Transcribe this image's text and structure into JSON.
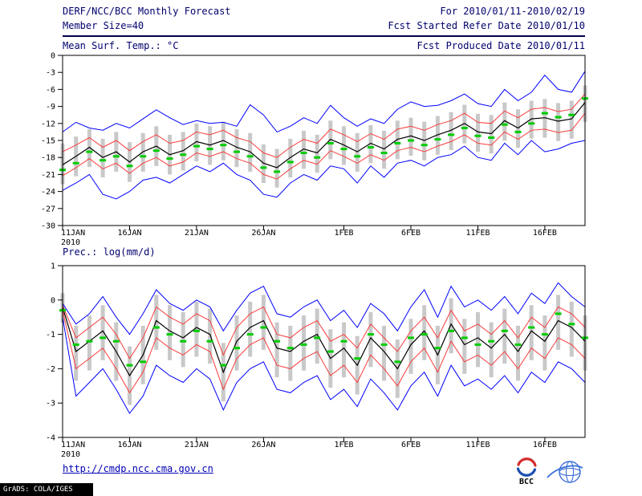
{
  "header": {
    "title": "DERF/NCC/BCC Monthly Forecast",
    "for_range": "For 2010/01/11-2010/02/19",
    "member_size": "Member Size=40",
    "fcst_refer": "Fcst Started Refer Date 2010/01/10",
    "fcst_produced": "Fcst Produced Date 2010/01/11"
  },
  "footer": {
    "url": "http://cmdp.ncc.cma.gov.cn",
    "bcc_label": "BCC",
    "grads_credit": "GrADS: COLA/IGES"
  },
  "colors": {
    "header_text": "#00006e",
    "blue_line": "#0000ff",
    "red_line": "#fa3c3c",
    "mean_line": "#000000",
    "obs_dash": "#00cc00",
    "spread_bar": "#c9c9c9",
    "link": "#0000b4"
  },
  "chart_data": [
    {
      "type": "line",
      "name": "temperature",
      "title": "Mean Surf. Temp.: °C",
      "n_points": 40,
      "start_date": "11JAN2010",
      "end_date": "19FEB2010",
      "ylim": [
        -30,
        0
      ],
      "y_ticks": [
        0,
        -3,
        -6,
        -9,
        -12,
        -15,
        -18,
        -21,
        -24,
        -27,
        -30
      ],
      "x_ticks": [
        {
          "index": 0,
          "label": "11JAN",
          "sublabel": "2010"
        },
        {
          "index": 5,
          "label": "16JAN"
        },
        {
          "index": 10,
          "label": "21JAN"
        },
        {
          "index": 15,
          "label": "26JAN"
        },
        {
          "index": 21,
          "label": "1FEB"
        },
        {
          "index": 26,
          "label": "6FEB"
        },
        {
          "index": 31,
          "label": "11FEB"
        },
        {
          "index": 36,
          "label": "16FEB"
        }
      ],
      "series": [
        {
          "name": "upper-blue",
          "color": "#0000ff",
          "width": 1,
          "values": [
            -13.5,
            -11.8,
            -12.8,
            -13.2,
            -12.0,
            -12.8,
            -11.2,
            -9.6,
            -11.0,
            -12.2,
            -11.5,
            -12.0,
            -11.8,
            -12.5,
            -8.7,
            -10.5,
            -13.5,
            -12.5,
            -11.0,
            -12.0,
            -8.8,
            -11.0,
            -12.5,
            -11.2,
            -12.0,
            -9.5,
            -8.2,
            -9.0,
            -8.8,
            -8.0,
            -6.8,
            -8.5,
            -9.0,
            -6.0,
            -8.0,
            -6.5,
            -3.5,
            -6.0,
            -6.5,
            -2.8
          ]
        },
        {
          "name": "upper-red",
          "color": "#fa3c3c",
          "width": 1,
          "values": [
            -17.0,
            -15.8,
            -14.5,
            -16.2,
            -15.0,
            -16.8,
            -15.2,
            -14.0,
            -15.5,
            -15.0,
            -13.5,
            -14.0,
            -13.2,
            -14.5,
            -15.2,
            -17.2,
            -18.0,
            -16.2,
            -14.8,
            -15.5,
            -13.0,
            -14.0,
            -15.2,
            -13.8,
            -14.8,
            -13.0,
            -12.5,
            -13.2,
            -12.2,
            -11.5,
            -10.2,
            -11.8,
            -12.0,
            -9.8,
            -11.0,
            -9.5,
            -9.2,
            -9.9,
            -9.5,
            -6.8
          ]
        },
        {
          "name": "mean-black",
          "color": "#000000",
          "width": 1.2,
          "values": [
            -19.3,
            -17.8,
            -16.2,
            -18.0,
            -17.0,
            -18.8,
            -17.0,
            -16.0,
            -17.5,
            -16.8,
            -15.2,
            -15.8,
            -15.0,
            -16.2,
            -17.0,
            -19.0,
            -19.8,
            -18.0,
            -16.5,
            -17.2,
            -14.8,
            -15.8,
            -17.0,
            -15.5,
            -16.5,
            -14.8,
            -14.2,
            -15.0,
            -14.0,
            -13.2,
            -12.0,
            -13.5,
            -13.8,
            -11.5,
            -12.8,
            -11.2,
            -11.0,
            -11.6,
            -11.2,
            -8.3
          ]
        },
        {
          "name": "lower-red",
          "color": "#fa3c3c",
          "width": 1,
          "values": [
            -21.2,
            -19.8,
            -18.2,
            -20.0,
            -19.0,
            -20.8,
            -19.0,
            -18.0,
            -19.5,
            -18.8,
            -17.2,
            -17.8,
            -17.0,
            -18.2,
            -19.0,
            -21.0,
            -21.8,
            -20.0,
            -18.5,
            -19.2,
            -16.8,
            -17.8,
            -19.0,
            -17.5,
            -18.5,
            -16.8,
            -16.2,
            -17.0,
            -16.0,
            -15.2,
            -14.0,
            -15.5,
            -15.8,
            -13.5,
            -14.8,
            -13.2,
            -13.0,
            -13.6,
            -13.2,
            -10.2
          ]
        },
        {
          "name": "lower-blue",
          "color": "#0000ff",
          "width": 1,
          "values": [
            -23.8,
            -22.5,
            -21.0,
            -24.5,
            -25.3,
            -24.0,
            -22.0,
            -21.5,
            -22.5,
            -21.0,
            -19.5,
            -20.5,
            -19.0,
            -21.0,
            -22.0,
            -24.5,
            -25.0,
            -22.5,
            -21.0,
            -22.0,
            -19.5,
            -20.0,
            -22.5,
            -19.5,
            -21.5,
            -19.0,
            -18.5,
            -19.5,
            -18.0,
            -17.5,
            -16.0,
            -18.0,
            -18.5,
            -15.5,
            -17.5,
            -15.0,
            -17.0,
            -16.5,
            -15.5,
            -15.0
          ]
        }
      ],
      "dashes": {
        "name": "green-dashes",
        "color": "#00cc00",
        "values": [
          -20.2,
          -19.0,
          -17.0,
          -18.5,
          -17.8,
          -19.5,
          -17.8,
          -16.8,
          -18.2,
          -17.5,
          -16.0,
          -16.5,
          -15.8,
          -17.0,
          -17.8,
          -19.8,
          -20.5,
          -18.8,
          -17.2,
          -18.0,
          -15.5,
          -16.5,
          -17.8,
          -16.2,
          -17.2,
          -15.5,
          -15.0,
          -15.8,
          -14.8,
          -14.0,
          -12.8,
          -14.2,
          -14.5,
          -12.2,
          -13.5,
          -12.0,
          -10.2,
          -10.9,
          -10.5,
          -7.6
        ]
      },
      "bars": {
        "name": "spread-bars",
        "color": "#c9c9c9",
        "high": [
          -15.5,
          -14.3,
          -13.0,
          -14.7,
          -13.5,
          -15.3,
          -13.7,
          -12.5,
          -14.0,
          -13.5,
          -12.0,
          -12.5,
          -11.7,
          -13.0,
          -13.7,
          -15.7,
          -16.5,
          -14.7,
          -13.3,
          -14.0,
          -11.5,
          -12.5,
          -13.7,
          -12.3,
          -13.3,
          -11.5,
          -11.0,
          -11.7,
          -10.7,
          -10.0,
          -8.7,
          -10.3,
          -10.5,
          -8.3,
          -9.5,
          -8.0,
          -7.7,
          -8.4,
          -8.0,
          -5.3
        ],
        "low": [
          -22.7,
          -21.3,
          -19.7,
          -21.5,
          -20.5,
          -22.3,
          -20.5,
          -19.5,
          -21.0,
          -20.3,
          -18.7,
          -19.3,
          -18.5,
          -19.7,
          -20.5,
          -22.5,
          -23.3,
          -21.5,
          -20.0,
          -20.7,
          -18.3,
          -19.3,
          -20.5,
          -19.0,
          -20.0,
          -18.3,
          -17.7,
          -18.5,
          -17.5,
          -16.7,
          -15.5,
          -17.0,
          -17.3,
          -15.0,
          -16.3,
          -14.7,
          -14.5,
          -15.1,
          -14.7,
          -11.7
        ]
      }
    },
    {
      "type": "line",
      "name": "precipitation",
      "title": "Prec.: log(mm/d)",
      "n_points": 40,
      "start_date": "11JAN2010",
      "end_date": "19FEB2010",
      "ylim": [
        -4,
        1
      ],
      "y_ticks": [
        1,
        0,
        -1,
        -2,
        -3,
        -4
      ],
      "x_ticks": [
        {
          "index": 0,
          "label": "11JAN",
          "sublabel": "2010"
        },
        {
          "index": 5,
          "label": "16JAN"
        },
        {
          "index": 10,
          "label": "21JAN"
        },
        {
          "index": 15,
          "label": "26JAN"
        },
        {
          "index": 21,
          "label": "1FEB"
        },
        {
          "index": 26,
          "label": "6FEB"
        },
        {
          "index": 31,
          "label": "11FEB"
        },
        {
          "index": 36,
          "label": "16FEB"
        }
      ],
      "series": [
        {
          "name": "upper-blue",
          "color": "#0000ff",
          "width": 1,
          "values": [
            -0.1,
            -0.7,
            -0.4,
            0.1,
            -0.5,
            -1.0,
            -0.4,
            0.3,
            -0.1,
            -0.3,
            0.0,
            -0.2,
            -0.9,
            -0.3,
            0.2,
            0.4,
            -0.4,
            -0.5,
            -0.2,
            0.0,
            -0.6,
            -0.3,
            -0.8,
            -0.1,
            -0.4,
            -0.9,
            -0.2,
            0.3,
            -0.5,
            0.4,
            -0.2,
            0.0,
            -0.3,
            0.1,
            -0.4,
            0.2,
            -0.1,
            0.5,
            0.1,
            -0.2
          ]
        },
        {
          "name": "upper-red",
          "color": "#fa3c3c",
          "width": 1,
          "values": [
            -0.15,
            -1.1,
            -0.8,
            -0.5,
            -1.0,
            -1.7,
            -1.1,
            -0.2,
            -0.5,
            -0.7,
            -0.4,
            -0.6,
            -1.6,
            -0.8,
            -0.4,
            -0.2,
            -1.0,
            -1.1,
            -0.8,
            -0.6,
            -1.2,
            -1.0,
            -1.4,
            -0.7,
            -1.1,
            -1.5,
            -0.9,
            -0.5,
            -1.1,
            -0.3,
            -0.9,
            -0.7,
            -1.0,
            -0.6,
            -1.1,
            -0.5,
            -0.8,
            -0.2,
            -0.4,
            -0.8
          ]
        },
        {
          "name": "mean-black",
          "color": "#000000",
          "width": 1.2,
          "values": [
            -0.2,
            -1.5,
            -1.2,
            -0.9,
            -1.5,
            -2.2,
            -1.6,
            -0.6,
            -0.9,
            -1.1,
            -0.8,
            -1.0,
            -2.1,
            -1.2,
            -0.8,
            -0.6,
            -1.4,
            -1.5,
            -1.2,
            -1.0,
            -1.7,
            -1.4,
            -1.9,
            -1.1,
            -1.5,
            -2.0,
            -1.3,
            -0.9,
            -1.6,
            -0.7,
            -1.3,
            -1.1,
            -1.4,
            -1.0,
            -1.5,
            -0.9,
            -1.2,
            -0.6,
            -0.8,
            -1.2
          ]
        },
        {
          "name": "lower-red",
          "color": "#fa3c3c",
          "width": 1,
          "values": [
            -0.3,
            -2.0,
            -1.7,
            -1.4,
            -2.0,
            -2.7,
            -2.1,
            -1.1,
            -1.4,
            -1.6,
            -1.3,
            -1.5,
            -2.6,
            -1.7,
            -1.3,
            -1.1,
            -1.9,
            -2.0,
            -1.7,
            -1.5,
            -2.2,
            -1.9,
            -2.4,
            -1.6,
            -2.0,
            -2.5,
            -1.8,
            -1.4,
            -2.1,
            -1.2,
            -1.8,
            -1.6,
            -1.9,
            -1.5,
            -2.0,
            -1.4,
            -1.7,
            -1.1,
            -1.3,
            -1.7
          ]
        },
        {
          "name": "lower-blue",
          "color": "#0000ff",
          "width": 1,
          "values": [
            -0.5,
            -2.8,
            -2.4,
            -2.0,
            -2.6,
            -3.3,
            -2.8,
            -1.9,
            -2.2,
            -2.4,
            -2.0,
            -2.3,
            -3.2,
            -2.4,
            -2.0,
            -1.8,
            -2.6,
            -2.7,
            -2.4,
            -2.2,
            -2.9,
            -2.6,
            -3.1,
            -2.3,
            -2.7,
            -3.2,
            -2.5,
            -2.1,
            -2.8,
            -1.9,
            -2.5,
            -2.3,
            -2.6,
            -2.2,
            -2.7,
            -2.1,
            -2.4,
            -1.8,
            -2.0,
            -2.4
          ]
        }
      ],
      "dashes": {
        "name": "green-dashes",
        "color": "#00cc00",
        "values": [
          -0.3,
          -1.3,
          -1.2,
          -1.1,
          -1.2,
          -1.9,
          -1.8,
          -0.8,
          -1.0,
          -1.2,
          -0.9,
          -1.2,
          -1.9,
          -1.4,
          -1.0,
          -0.8,
          -1.2,
          -1.4,
          -1.3,
          -1.1,
          -1.5,
          -1.2,
          -1.7,
          -1.0,
          -1.3,
          -1.8,
          -1.1,
          -1.0,
          -1.4,
          -0.9,
          -1.1,
          -1.3,
          -1.2,
          -0.9,
          -1.3,
          -0.8,
          -1.0,
          -0.4,
          -0.7,
          -1.1
        ]
      },
      "bars": {
        "name": "spread-bars",
        "color": "#c9c9c9",
        "high": [
          0.2,
          -0.75,
          -0.45,
          -0.15,
          -0.65,
          -1.35,
          -0.75,
          0.15,
          -0.15,
          -0.35,
          -0.05,
          -0.25,
          -1.25,
          -0.45,
          -0.05,
          0.15,
          -0.65,
          -0.75,
          -0.45,
          -0.25,
          -0.85,
          -0.65,
          -1.05,
          -0.35,
          -0.75,
          -1.15,
          -0.55,
          -0.15,
          -0.75,
          0.05,
          -0.55,
          -0.35,
          -0.65,
          -0.25,
          -0.75,
          -0.15,
          -0.45,
          0.15,
          -0.05,
          -0.45
        ],
        "low": [
          -0.65,
          -2.35,
          -2.05,
          -1.75,
          -2.35,
          -3.05,
          -2.45,
          -1.45,
          -1.75,
          -1.95,
          -1.65,
          -1.85,
          -2.95,
          -2.05,
          -1.65,
          -1.45,
          -2.25,
          -2.35,
          -2.05,
          -1.85,
          -2.55,
          -2.25,
          -2.75,
          -1.95,
          -2.35,
          -2.85,
          -2.15,
          -1.75,
          -2.45,
          -1.55,
          -2.15,
          -1.95,
          -2.25,
          -1.85,
          -2.35,
          -1.75,
          -2.05,
          -1.45,
          -1.65,
          -2.05
        ]
      }
    }
  ]
}
